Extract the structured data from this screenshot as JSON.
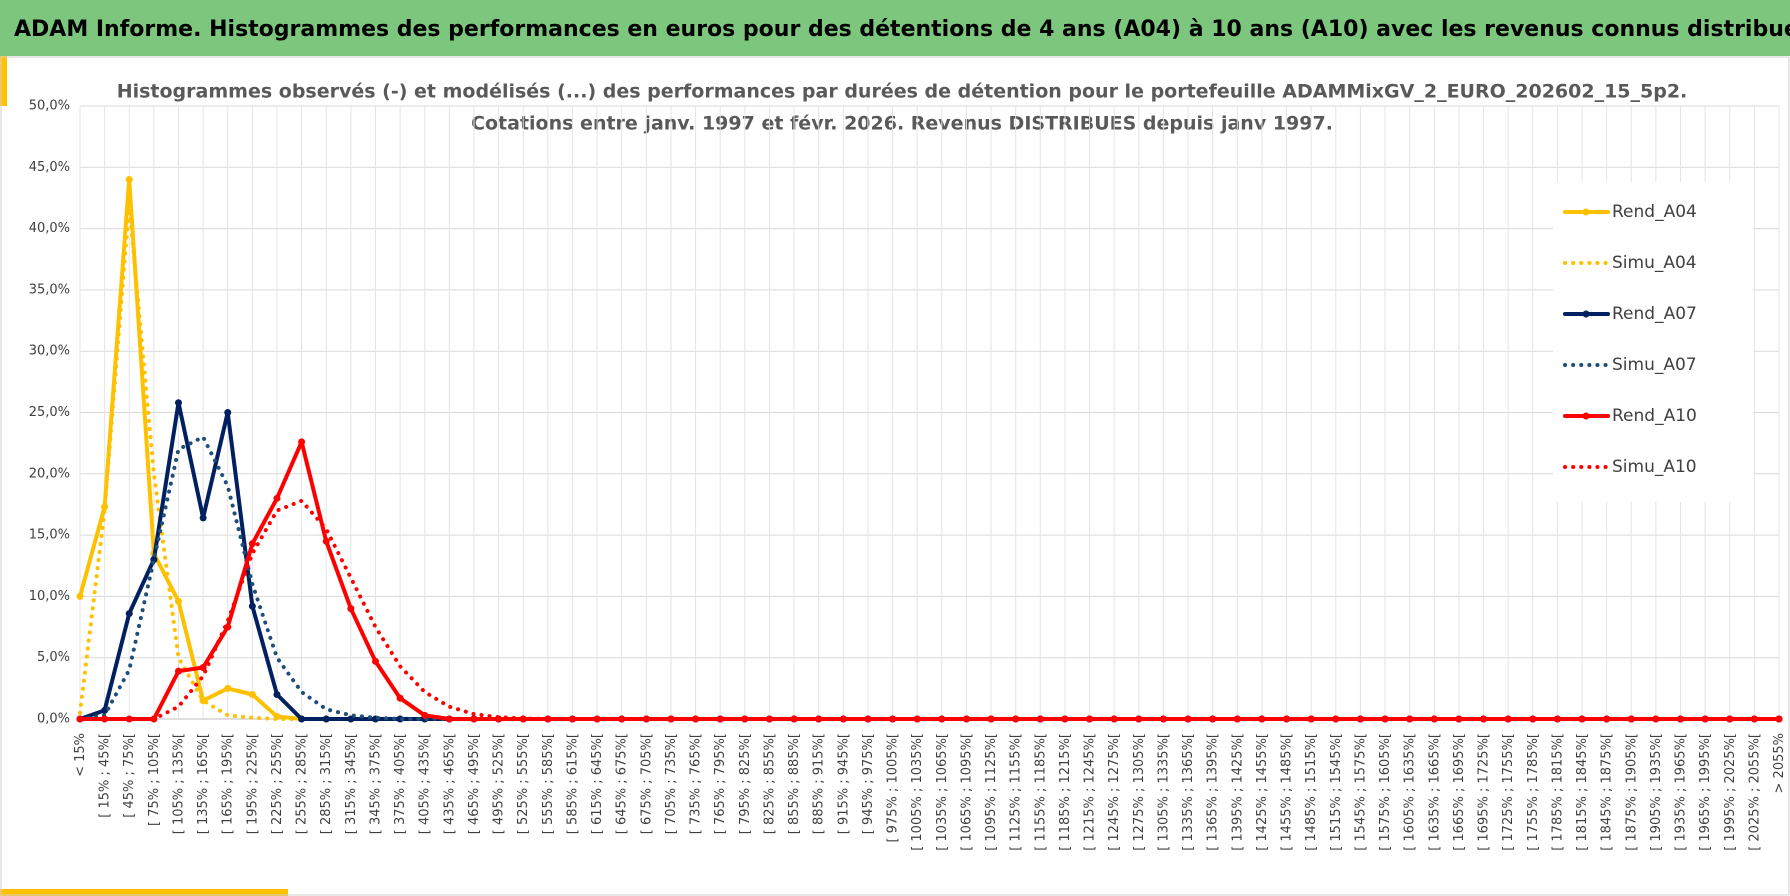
{
  "header": {
    "title": "ADAM Informe. Histogrammes des performances en euros pour des détentions de 4 ans (A04) à 10 ans (A10) avec les revenus connus distribués"
  },
  "chart_data": {
    "type": "line",
    "title": "Histogrammes observés (-) et modélisés (...) des performances par durées de détention pour le portefeuille ADAMMixGV_2_EURO_202602_15_5p2.",
    "subtitle": "Cotations entre janv. 1997 et févr. 2026. Revenus DISTRIBUES depuis janv 1997.",
    "categories": [
      "< 15%",
      "[ 15% ; 45%[",
      "[ 45% ; 75%[",
      "[ 75% ; 105%[",
      "[ 105% ; 135%[",
      "[ 135% ; 165%[",
      "[ 165% ; 195%[",
      "[ 195% ; 225%[",
      "[ 225% ; 255%[",
      "[ 255% ; 285%[",
      "[ 285% ; 315%[",
      "[ 315% ; 345%[",
      "[ 345% ; 375%[",
      "[ 375% ; 405%[",
      "[ 405% ; 435%[",
      "[ 435% ; 465%[",
      "[ 465% ; 495%[",
      "[ 495% ; 525%[",
      "[ 525% ; 555%[",
      "[ 555% ; 585%[",
      "[ 585% ; 615%[",
      "[ 615% ; 645%[",
      "[ 645% ; 675%[",
      "[ 675% ; 705%[",
      "[ 705% ; 735%[",
      "[ 735% ; 765%[",
      "[ 765% ; 795%[",
      "[ 795% ; 825%[",
      "[ 825% ; 855%[",
      "[ 855% ; 885%[",
      "[ 885% ; 915%[",
      "[ 915% ; 945%[",
      "[ 945% ; 975%[",
      "[ 975% ; 1005%[",
      "[ 1005% ; 1035%[",
      "[ 1035% ; 1065%[",
      "[ 1065% ; 1095%[",
      "[ 1095% ; 1125%[",
      "[ 1125% ; 1155%[",
      "[ 1155% ; 1185%[",
      "[ 1185% ; 1215%[",
      "[ 1215% ; 1245%[",
      "[ 1245% ; 1275%[",
      "[ 1275% ; 1305%[",
      "[ 1305% ; 1335%[",
      "[ 1335% ; 1365%[",
      "[ 1365% ; 1395%[",
      "[ 1395% ; 1425%[",
      "[ 1425% ; 1455%[",
      "[ 1455% ; 1485%[",
      "[ 1485% ; 1515%[",
      "[ 1515% ; 1545%[",
      "[ 1545% ; 1575%[",
      "[ 1575% ; 1605%[",
      "[ 1605% ; 1635%[",
      "[ 1635% ; 1665%[",
      "[ 1665% ; 1695%[",
      "[ 1695% ; 1725%[",
      "[ 1725% ; 1755%[",
      "[ 1755% ; 1785%[",
      "[ 1785% ; 1815%[",
      "[ 1815% ; 1845%[",
      "[ 1845% ; 1875%[",
      "[ 1875% ; 1905%[",
      "[ 1905% ; 1935%[",
      "[ 1935% ; 1965%[",
      "[ 1965% ; 1995%[",
      "[ 1995% ; 2025%[",
      "[ 2025% ; 2055%[",
      "> 2055%"
    ],
    "series": [
      {
        "name": "Rend_A04",
        "color": "#ffc000",
        "dash": false,
        "markers": true,
        "values": [
          10.0,
          17.3,
          44.0,
          13.5,
          9.6,
          1.5,
          2.5,
          2.0,
          0.2,
          0,
          0,
          0,
          0,
          0,
          0,
          0,
          0,
          0,
          0,
          0,
          0,
          0,
          0,
          0,
          0,
          0,
          0,
          0,
          0,
          0,
          0,
          0,
          0,
          0,
          0,
          0,
          0,
          0,
          0,
          0,
          0,
          0,
          0,
          0,
          0,
          0,
          0,
          0,
          0,
          0,
          0,
          0,
          0,
          0,
          0,
          0,
          0,
          0,
          0,
          0,
          0,
          0,
          0,
          0,
          0,
          0,
          0,
          0,
          0,
          0
        ]
      },
      {
        "name": "Simu_A04",
        "color": "#ffc000",
        "dash": true,
        "markers": false,
        "values": [
          0.5,
          17,
          42,
          20,
          5,
          1.5,
          0.3,
          0.1,
          0,
          0,
          0,
          0,
          0,
          0,
          0,
          0,
          0,
          0,
          0,
          0,
          0,
          0,
          0,
          0,
          0,
          0,
          0,
          0,
          0,
          0,
          0,
          0,
          0,
          0,
          0,
          0,
          0,
          0,
          0,
          0,
          0,
          0,
          0,
          0,
          0,
          0,
          0,
          0,
          0,
          0,
          0,
          0,
          0,
          0,
          0,
          0,
          0,
          0,
          0,
          0,
          0,
          0,
          0,
          0,
          0,
          0,
          0,
          0,
          0,
          0
        ]
      },
      {
        "name": "Rend_A07",
        "color": "#002060",
        "dash": false,
        "markers": true,
        "values": [
          0,
          0.7,
          8.6,
          13.0,
          25.8,
          16.4,
          25.0,
          9.2,
          2.0,
          0,
          0,
          0,
          0,
          0,
          0,
          0,
          0,
          0,
          0,
          0,
          0,
          0,
          0,
          0,
          0,
          0,
          0,
          0,
          0,
          0,
          0,
          0,
          0,
          0,
          0,
          0,
          0,
          0,
          0,
          0,
          0,
          0,
          0,
          0,
          0,
          0,
          0,
          0,
          0,
          0,
          0,
          0,
          0,
          0,
          0,
          0,
          0,
          0,
          0,
          0,
          0,
          0,
          0,
          0,
          0,
          0,
          0,
          0,
          0,
          0
        ]
      },
      {
        "name": "Simu_A07",
        "color": "#1f4e79",
        "dash": true,
        "markers": false,
        "values": [
          0,
          0.3,
          4,
          13,
          22,
          23,
          19,
          11,
          5,
          2.2,
          0.8,
          0.3,
          0.1,
          0,
          0,
          0,
          0,
          0,
          0,
          0,
          0,
          0,
          0,
          0,
          0,
          0,
          0,
          0,
          0,
          0,
          0,
          0,
          0,
          0,
          0,
          0,
          0,
          0,
          0,
          0,
          0,
          0,
          0,
          0,
          0,
          0,
          0,
          0,
          0,
          0,
          0,
          0,
          0,
          0,
          0,
          0,
          0,
          0,
          0,
          0,
          0,
          0,
          0,
          0,
          0,
          0,
          0,
          0,
          0,
          0
        ]
      },
      {
        "name": "Rend_A10",
        "color": "#ff0000",
        "dash": false,
        "markers": true,
        "values": [
          0,
          0,
          0,
          0,
          3.9,
          4.2,
          7.5,
          14.3,
          18.0,
          22.6,
          14.5,
          9.0,
          4.7,
          1.7,
          0.3,
          0,
          0,
          0,
          0,
          0,
          0,
          0,
          0,
          0,
          0,
          0,
          0,
          0,
          0,
          0,
          0,
          0,
          0,
          0,
          0,
          0,
          0,
          0,
          0,
          0,
          0,
          0,
          0,
          0,
          0,
          0,
          0,
          0,
          0,
          0,
          0,
          0,
          0,
          0,
          0,
          0,
          0,
          0,
          0,
          0,
          0,
          0,
          0,
          0,
          0,
          0,
          0,
          0,
          0,
          0
        ]
      },
      {
        "name": "Simu_A10",
        "color": "#ff0000",
        "dash": true,
        "markers": false,
        "values": [
          0,
          0,
          0,
          0,
          1,
          3.5,
          8,
          13.5,
          17,
          17.8,
          15.5,
          11.5,
          7.5,
          4.3,
          2.2,
          1,
          0.4,
          0.15,
          0.05,
          0,
          0,
          0,
          0,
          0,
          0,
          0,
          0,
          0,
          0,
          0,
          0,
          0,
          0,
          0,
          0,
          0,
          0,
          0,
          0,
          0,
          0,
          0,
          0,
          0,
          0,
          0,
          0,
          0,
          0,
          0,
          0,
          0,
          0,
          0,
          0,
          0,
          0,
          0,
          0,
          0,
          0,
          0,
          0,
          0,
          0,
          0,
          0,
          0,
          0,
          0
        ]
      }
    ],
    "ylim": [
      0,
      50
    ],
    "yticks": [
      {
        "value": 0,
        "label": "0,0%"
      },
      {
        "value": 5,
        "label": "5,0%"
      },
      {
        "value": 10,
        "label": "10,0%"
      },
      {
        "value": 15,
        "label": "15,0%"
      },
      {
        "value": 20,
        "label": "20,0%"
      },
      {
        "value": 25,
        "label": "25,0%"
      },
      {
        "value": 30,
        "label": "30,0%"
      },
      {
        "value": 35,
        "label": "35,0%"
      },
      {
        "value": 40,
        "label": "40,0%"
      },
      {
        "value": 45,
        "label": "45,0%"
      },
      {
        "value": 50,
        "label": "50,0%"
      }
    ],
    "grid": true,
    "legend": "right"
  }
}
